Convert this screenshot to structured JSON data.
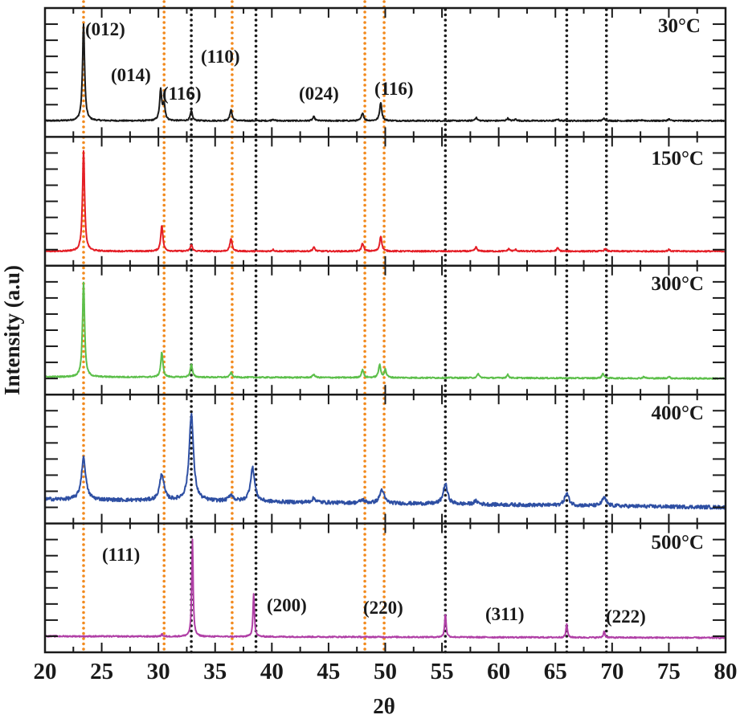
{
  "chart_data": {
    "type": "line",
    "layout": "stacked-panels",
    "xlabel": "2θ",
    "ylabel": "Intensity (a.u)",
    "xlim": [
      20,
      80
    ],
    "xticks": [
      20,
      25,
      30,
      35,
      40,
      45,
      50,
      55,
      60,
      65,
      70,
      75,
      80
    ],
    "ylim_per_panel": [
      0,
      160
    ],
    "series": [
      {
        "name": "30°C",
        "color": "#1a1a1a",
        "baseline": 20,
        "baseline_end": 20,
        "noise": 0.8,
        "width": 0.22,
        "peaks": [
          [
            23.4,
            120
          ],
          [
            30.2,
            38
          ],
          [
            30.5,
            20
          ],
          [
            32.9,
            12
          ],
          [
            36.4,
            14
          ],
          [
            40.1,
            2
          ],
          [
            43.7,
            5
          ],
          [
            48.0,
            10
          ],
          [
            49.6,
            23
          ],
          [
            58.0,
            4
          ],
          [
            60.8,
            3
          ],
          [
            61.5,
            2
          ],
          [
            65.2,
            2
          ],
          [
            69.3,
            3
          ],
          [
            72.7,
            1
          ],
          [
            75.0,
            2
          ]
        ]
      },
      {
        "name": "150°C",
        "color": "#e41e26",
        "baseline": 18,
        "baseline_end": 18,
        "noise": 0.8,
        "width": 0.22,
        "peaks": [
          [
            23.4,
            124
          ],
          [
            30.3,
            33
          ],
          [
            32.9,
            8
          ],
          [
            36.4,
            16
          ],
          [
            40.1,
            2
          ],
          [
            43.7,
            5
          ],
          [
            48.0,
            10
          ],
          [
            49.6,
            19
          ],
          [
            58.0,
            5
          ],
          [
            60.9,
            3
          ],
          [
            61.5,
            2
          ],
          [
            65.2,
            4
          ],
          [
            69.4,
            3
          ],
          [
            75.0,
            2
          ]
        ]
      },
      {
        "name": "300°C",
        "color": "#5cbf4a",
        "baseline": 22,
        "baseline_end": 20,
        "noise": 0.8,
        "width": 0.22,
        "peaks": [
          [
            23.4,
            118
          ],
          [
            30.3,
            31
          ],
          [
            32.9,
            16
          ],
          [
            36.4,
            6
          ],
          [
            43.7,
            4
          ],
          [
            48.0,
            10
          ],
          [
            49.5,
            16
          ],
          [
            50.0,
            10
          ],
          [
            58.2,
            5
          ],
          [
            60.8,
            4
          ],
          [
            69.2,
            6
          ],
          [
            72.8,
            2
          ],
          [
            75.0,
            2
          ]
        ]
      },
      {
        "name": "400°C",
        "color": "#2e4fa3",
        "baseline": 30,
        "baseline_end": 20,
        "noise": 2.2,
        "width": 0.45,
        "peaks": [
          [
            23.4,
            52
          ],
          [
            30.3,
            33
          ],
          [
            32.9,
            108
          ],
          [
            36.4,
            8
          ],
          [
            38.3,
            42
          ],
          [
            43.7,
            5
          ],
          [
            48.0,
            4
          ],
          [
            49.7,
            17
          ],
          [
            55.3,
            25
          ],
          [
            58.0,
            4
          ],
          [
            66.0,
            15
          ],
          [
            69.3,
            10
          ]
        ]
      },
      {
        "name": "500°C",
        "color": "#b03fa6",
        "baseline": 20,
        "baseline_end": 18,
        "noise": 0.8,
        "width": 0.15,
        "peaks": [
          [
            30.3,
            3
          ],
          [
            33.0,
            120
          ],
          [
            38.4,
            54
          ],
          [
            55.3,
            30
          ],
          [
            66.0,
            17
          ],
          [
            69.3,
            8
          ]
        ]
      }
    ],
    "reference_lines": {
      "orange": {
        "color": "#f28a1e",
        "x": [
          23.4,
          30.5,
          36.5,
          48.2,
          49.9
        ]
      },
      "black": {
        "color": "#1a1a1a",
        "x": [
          32.9,
          38.6,
          55.3,
          66.0,
          69.5
        ]
      }
    },
    "annotations": [
      {
        "text": "(012)",
        "panel": "30°C",
        "x": 23.4
      },
      {
        "text": "(014)",
        "panel": "30°C",
        "x": 30.2
      },
      {
        "text": "(116)",
        "panel": "30°C",
        "x": 32.9
      },
      {
        "text": "(110)",
        "panel": "30°C",
        "x": 36.4
      },
      {
        "text": "(024)",
        "panel": "30°C",
        "x": 48.0
      },
      {
        "text": "(116)",
        "panel": "30°C",
        "x": 49.6
      },
      {
        "text": "(111)",
        "panel": "500°C",
        "x": 33.0
      },
      {
        "text": "(200)",
        "panel": "500°C",
        "x": 38.4
      },
      {
        "text": "(220)",
        "panel": "500°C",
        "x": 55.3
      },
      {
        "text": "(311)",
        "panel": "500°C",
        "x": 66.0
      },
      {
        "text": "(222)",
        "panel": "500°C",
        "x": 69.3
      }
    ]
  }
}
